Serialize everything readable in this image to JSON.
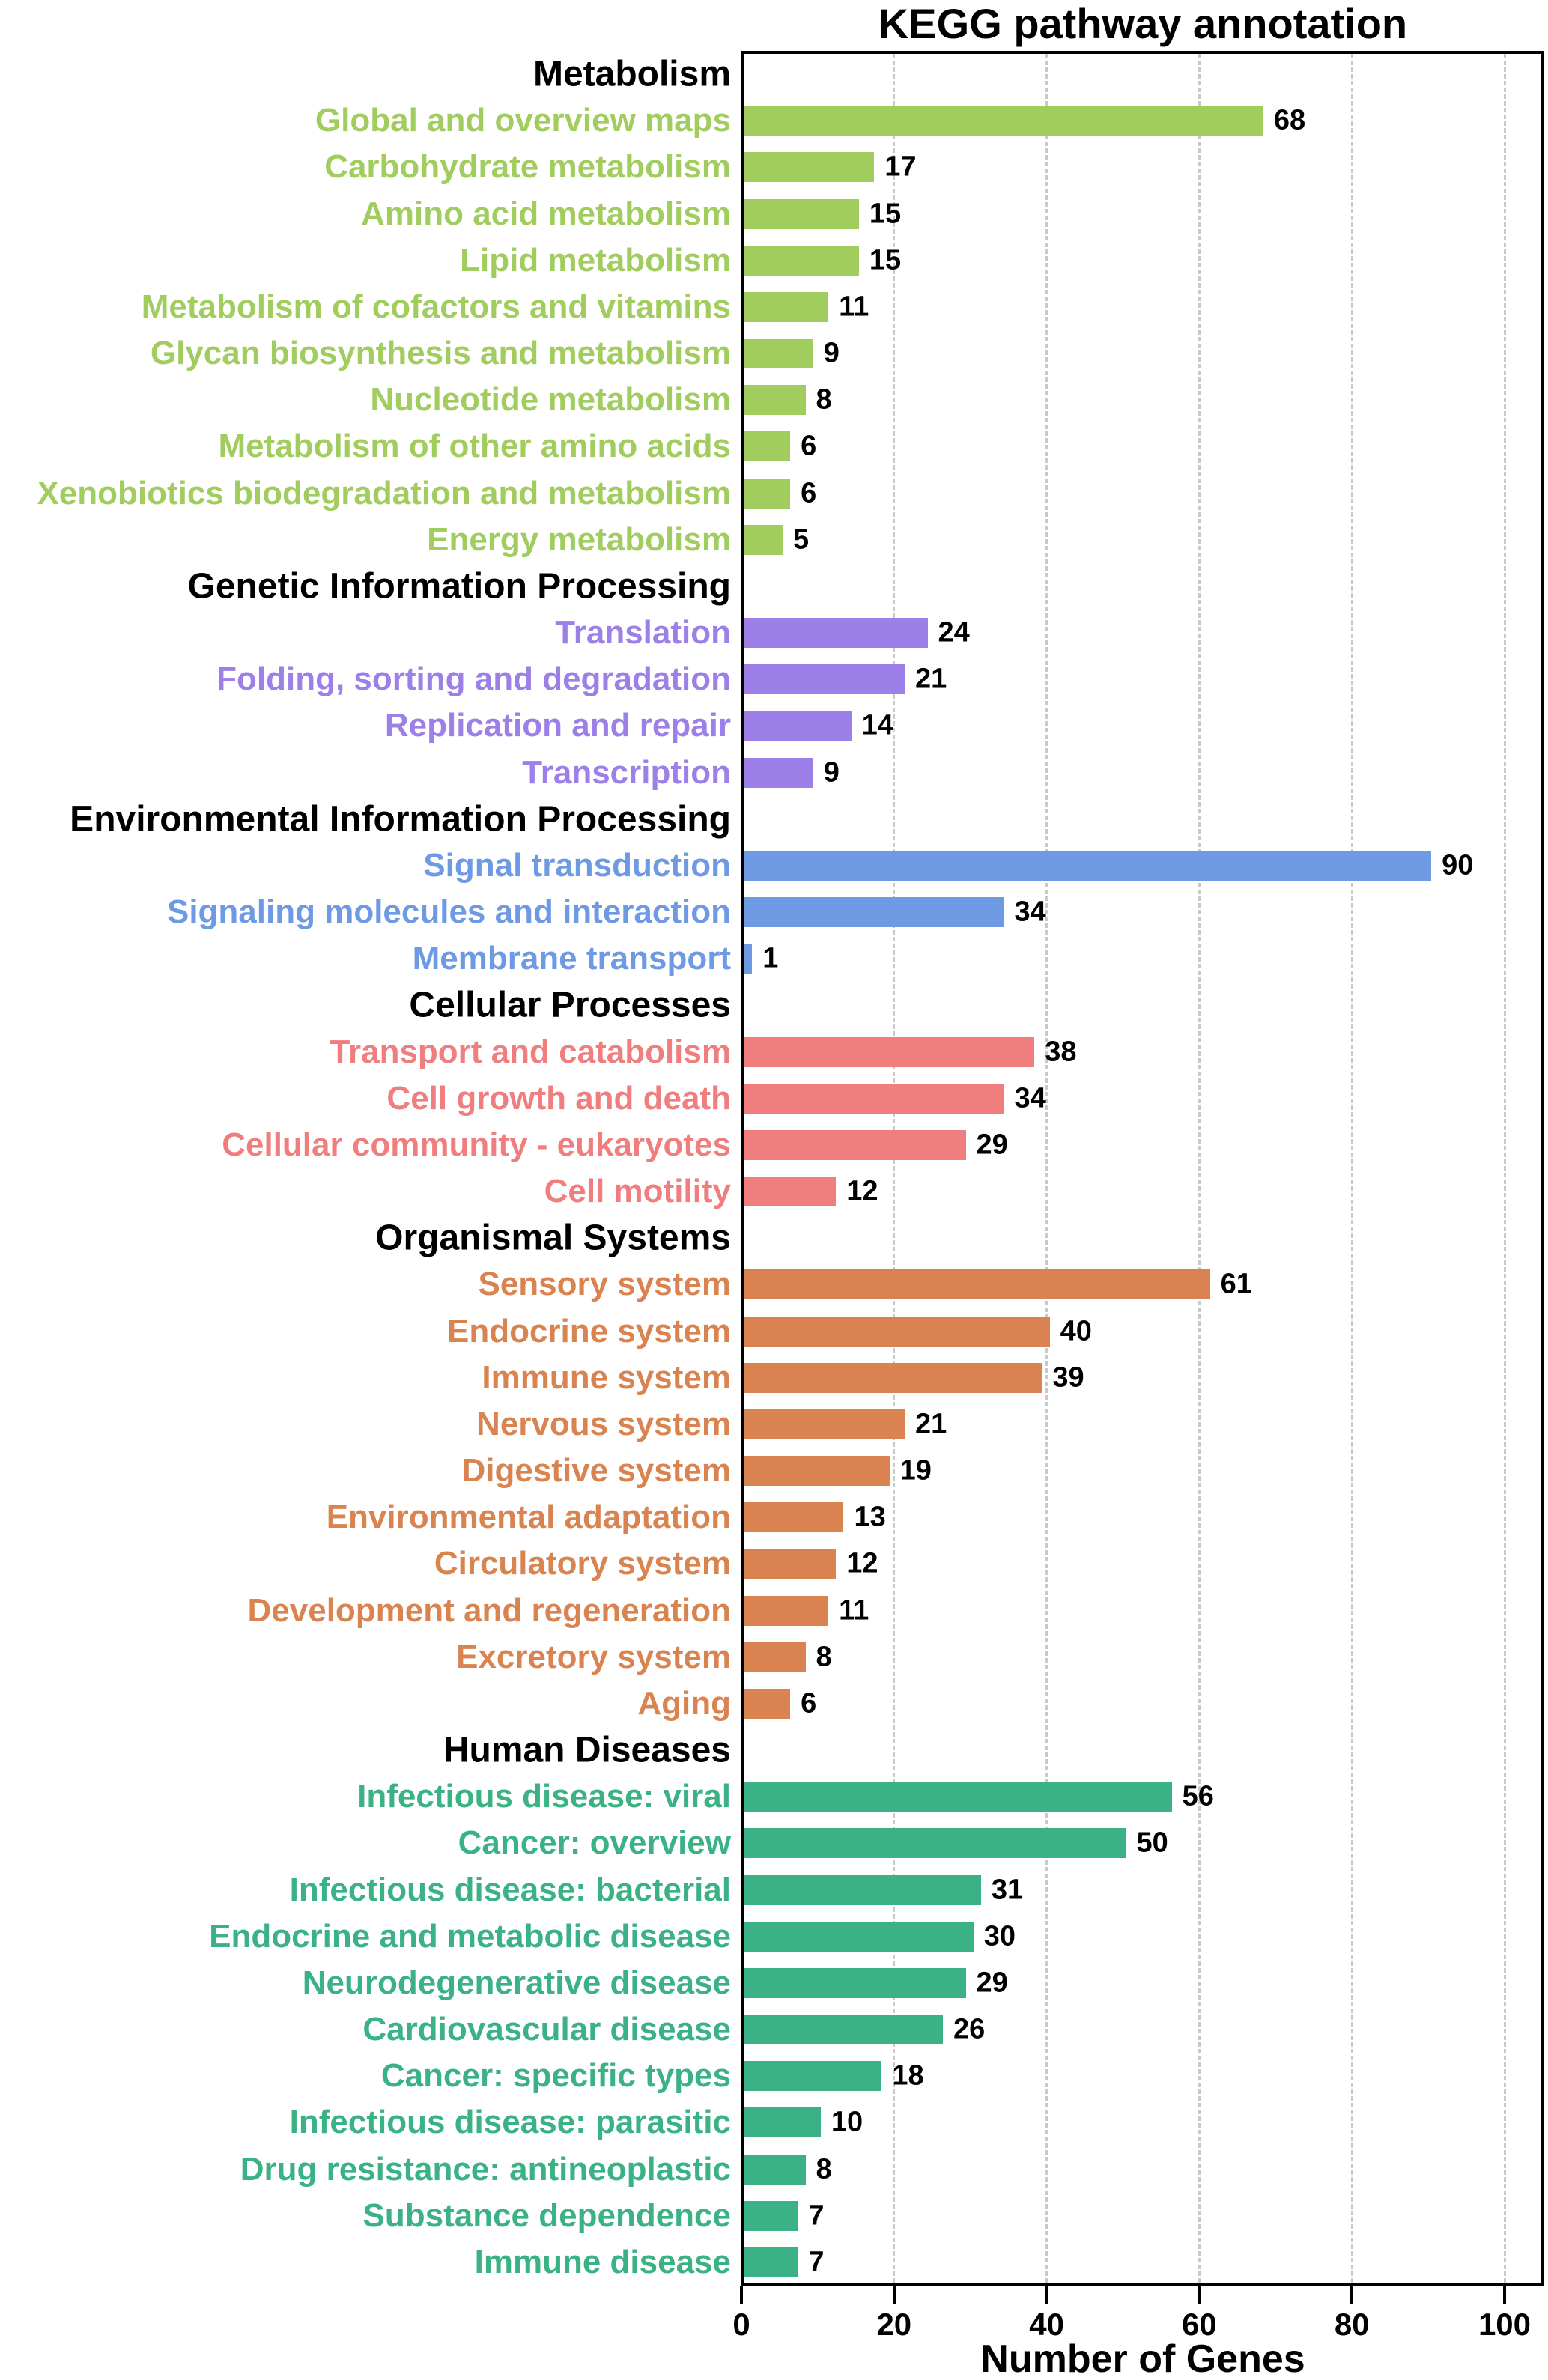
{
  "chart_data": {
    "type": "bar",
    "orientation": "horizontal",
    "title": "KEGG pathway annotation",
    "xlabel": "Number of Genes",
    "x_ticks": [
      0,
      20,
      40,
      60,
      80,
      100
    ],
    "xlim": [
      0,
      105
    ],
    "grid": "vertical-dashed",
    "legend_position": "none",
    "grid_color": "#c9c9c9",
    "axis_color": "#000000",
    "groups": [
      {
        "name": "Metabolism",
        "color": "#a1cc5e",
        "items": [
          {
            "label": "Global and overview maps",
            "value": 68
          },
          {
            "label": "Carbohydrate metabolism",
            "value": 17
          },
          {
            "label": "Amino acid metabolism",
            "value": 15
          },
          {
            "label": "Lipid metabolism",
            "value": 15
          },
          {
            "label": "Metabolism of cofactors and vitamins",
            "value": 11
          },
          {
            "label": "Glycan biosynthesis and metabolism",
            "value": 9
          },
          {
            "label": "Nucleotide metabolism",
            "value": 8
          },
          {
            "label": "Metabolism of other amino acids",
            "value": 6
          },
          {
            "label": "Xenobiotics biodegradation and metabolism",
            "value": 6
          },
          {
            "label": "Energy metabolism",
            "value": 5
          }
        ]
      },
      {
        "name": "Genetic Information Processing",
        "color": "#9c80e8",
        "items": [
          {
            "label": "Translation",
            "value": 24
          },
          {
            "label": "Folding, sorting and degradation",
            "value": 21
          },
          {
            "label": "Replication and repair",
            "value": 14
          },
          {
            "label": "Transcription",
            "value": 9
          }
        ]
      },
      {
        "name": "Environmental Information Processing",
        "color": "#6d9ae3",
        "items": [
          {
            "label": "Signal transduction",
            "value": 90
          },
          {
            "label": "Signaling molecules and interaction",
            "value": 34
          },
          {
            "label": "Membrane transport",
            "value": 1
          }
        ]
      },
      {
        "name": "Cellular Processes",
        "color": "#f07e7e",
        "items": [
          {
            "label": "Transport and catabolism",
            "value": 38
          },
          {
            "label": "Cell growth and death",
            "value": 34
          },
          {
            "label": "Cellular community - eukaryotes",
            "value": 29
          },
          {
            "label": "Cell motility",
            "value": 12
          }
        ]
      },
      {
        "name": "Organismal Systems",
        "color": "#d98450",
        "items": [
          {
            "label": "Sensory system",
            "value": 61
          },
          {
            "label": "Endocrine system",
            "value": 40
          },
          {
            "label": "Immune system",
            "value": 39
          },
          {
            "label": "Nervous system",
            "value": 21
          },
          {
            "label": "Digestive system",
            "value": 19
          },
          {
            "label": "Environmental adaptation",
            "value": 13
          },
          {
            "label": "Circulatory system",
            "value": 12
          },
          {
            "label": "Development and regeneration",
            "value": 11
          },
          {
            "label": "Excretory system",
            "value": 8
          },
          {
            "label": "Aging",
            "value": 6
          }
        ]
      },
      {
        "name": "Human Diseases",
        "color": "#3bb286",
        "items": [
          {
            "label": "Infectious disease: viral",
            "value": 56
          },
          {
            "label": "Cancer: overview",
            "value": 50
          },
          {
            "label": "Infectious disease: bacterial",
            "value": 31
          },
          {
            "label": "Endocrine and metabolic disease",
            "value": 30
          },
          {
            "label": "Neurodegenerative disease",
            "value": 29
          },
          {
            "label": "Cardiovascular disease",
            "value": 26
          },
          {
            "label": "Cancer: specific types",
            "value": 18
          },
          {
            "label": "Infectious disease: parasitic",
            "value": 10
          },
          {
            "label": "Drug resistance: antineoplastic",
            "value": 8
          },
          {
            "label": "Substance dependence",
            "value": 7
          },
          {
            "label": "Immune disease",
            "value": 7
          }
        ]
      }
    ]
  }
}
